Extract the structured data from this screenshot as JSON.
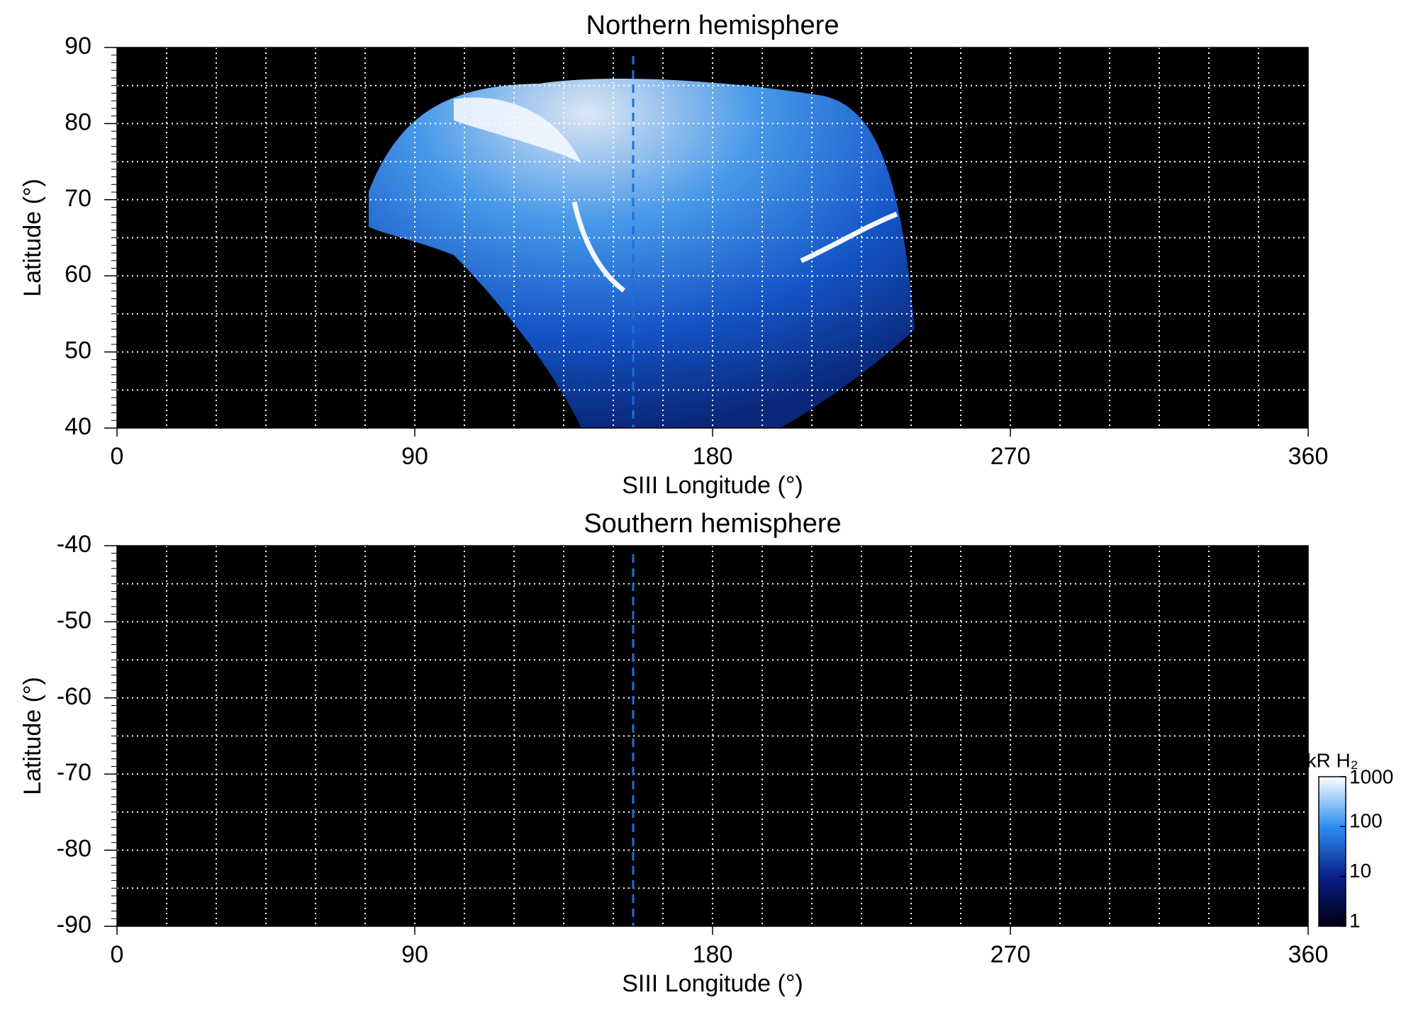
{
  "chart_data": [
    {
      "type": "heatmap",
      "title": "Northern hemisphere",
      "xlabel": "SIII Longitude (°)",
      "ylabel": "Latitude (°)",
      "xlim": [
        0,
        360
      ],
      "xticks": [
        0,
        90,
        180,
        270,
        360
      ],
      "ylim": [
        40,
        90
      ],
      "yticks": [
        40,
        50,
        60,
        70,
        80,
        90
      ],
      "grid": true,
      "grid_step": [
        15,
        5
      ],
      "vline": {
        "x": 156,
        "color": "#1a6fe0"
      }
    },
    {
      "type": "heatmap",
      "title": "Southern hemisphere",
      "xlabel": "SIII Longitude (°)",
      "ylabel": "Latitude (°)",
      "xlim": [
        0,
        360
      ],
      "xticks": [
        0,
        90,
        180,
        270,
        360
      ],
      "ylim": [
        -90,
        -40
      ],
      "yticks": [
        -40,
        -50,
        -60,
        -70,
        -80,
        -90
      ],
      "grid": true,
      "grid_step": [
        15,
        5
      ],
      "vline": {
        "x": 156,
        "color": "#1a6fe0"
      },
      "colorbar": {
        "label": "kR H₂",
        "scale": "log",
        "lim": [
          1,
          1000
        ],
        "ticks": [
          1,
          10,
          100,
          1000
        ]
      }
    }
  ]
}
